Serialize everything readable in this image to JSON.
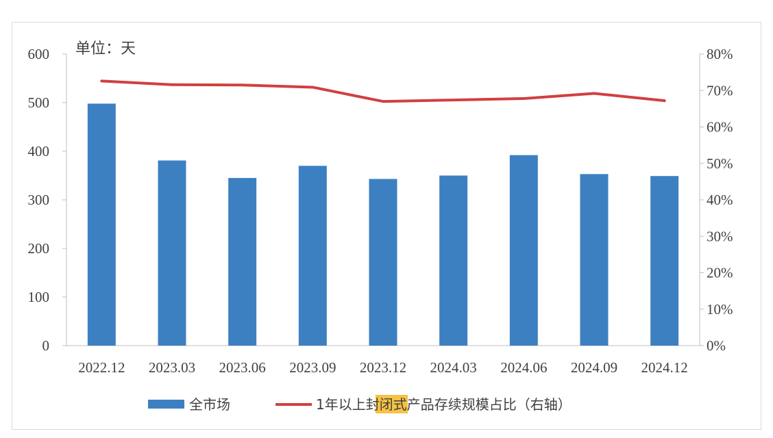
{
  "chart_data": {
    "type": "bar",
    "unit_label": "单位：天",
    "categories": [
      "2022.12",
      "2023.03",
      "2023.06",
      "2023.09",
      "2023.12",
      "2024.03",
      "2024.06",
      "2024.09",
      "2024.12"
    ],
    "series": [
      {
        "name": "全市场",
        "type": "bar",
        "axis": "left",
        "color": "#3C80C2",
        "values": [
          498,
          381,
          345,
          370,
          343,
          350,
          392,
          353,
          349
        ]
      },
      {
        "name": "1年以上封闭式产品存续规模占比（右轴）",
        "type": "line",
        "axis": "right",
        "color": "#D23F3F",
        "values": [
          0.726,
          0.716,
          0.715,
          0.709,
          0.67,
          0.674,
          0.678,
          0.692,
          0.672
        ]
      }
    ],
    "ylim_left": [
      0,
      600
    ],
    "yticks_left": [
      "0",
      "100",
      "200",
      "300",
      "400",
      "500",
      "600"
    ],
    "ylim_right": [
      0,
      0.8
    ],
    "yticks_right": [
      "0%",
      "10%",
      "20%",
      "30%",
      "40%",
      "50%",
      "60%",
      "70%",
      "80%"
    ],
    "legend": {
      "position": "bottom",
      "items": [
        {
          "label": "全市场",
          "kind": "bar"
        },
        {
          "label_before": "1年以上",
          "label_highlight": "封闭",
          "label_after": "式产品存续规模占比（右轴）",
          "kind": "line",
          "highlight_color": "#F5C242"
        }
      ]
    },
    "grid": false
  }
}
